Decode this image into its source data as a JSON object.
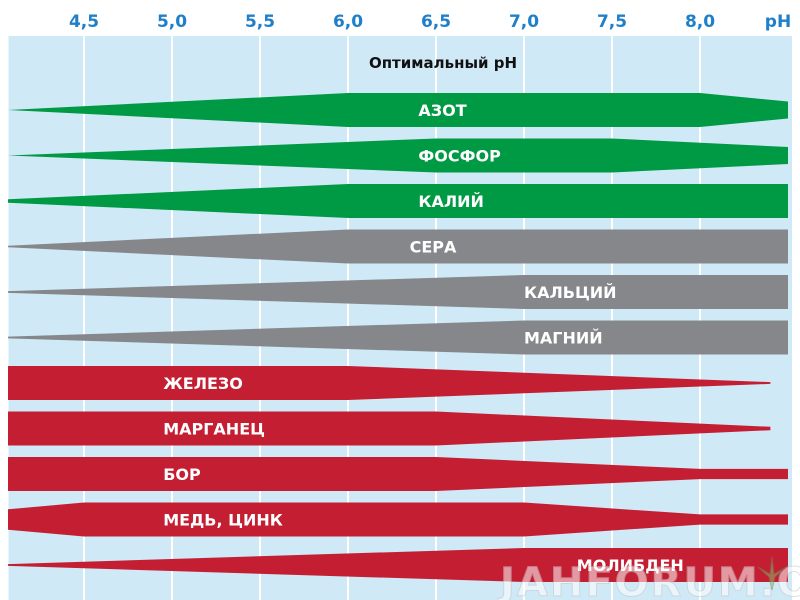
{
  "chart_data": {
    "type": "area",
    "title": "Оптимальный pH",
    "x_unit_label": "pH",
    "x_ticks": [
      4.5,
      5.0,
      5.5,
      6.0,
      6.5,
      7.0,
      7.5,
      8.0
    ],
    "x_tick_labels": [
      "4,5",
      "5,0",
      "5,5",
      "6,0",
      "6,5",
      "7,0",
      "7,5",
      "8,0"
    ],
    "xlim": [
      4.0,
      8.5
    ],
    "grid": true,
    "legend": "none",
    "colors": {
      "background": "#cfe9f7",
      "gridline": "#ffffff",
      "tick_text": "#1f7fc9",
      "green": "#009944",
      "gray": "#85878a",
      "red": "#c41e32"
    },
    "series": [
      {
        "name": "АЗОТ",
        "group": "green",
        "profile": [
          [
            4.0,
            0.0
          ],
          [
            6.0,
            1.0
          ],
          [
            8.0,
            1.0
          ],
          [
            8.5,
            0.5
          ]
        ]
      },
      {
        "name": "ФОСФОР",
        "group": "green",
        "profile": [
          [
            4.0,
            0.0
          ],
          [
            6.5,
            1.0
          ],
          [
            7.5,
            1.0
          ],
          [
            8.5,
            0.5
          ]
        ]
      },
      {
        "name": "КАЛИЙ",
        "group": "green",
        "profile": [
          [
            4.0,
            0.1
          ],
          [
            6.0,
            1.0
          ],
          [
            8.5,
            1.0
          ]
        ]
      },
      {
        "name": "СЕРА",
        "group": "gray",
        "profile": [
          [
            4.0,
            0.05
          ],
          [
            6.0,
            1.0
          ],
          [
            8.5,
            1.0
          ]
        ]
      },
      {
        "name": "КАЛЬЦИЙ",
        "group": "gray",
        "profile": [
          [
            4.0,
            0.05
          ],
          [
            7.0,
            1.0
          ],
          [
            8.5,
            1.0
          ]
        ]
      },
      {
        "name": "МАГНИЙ",
        "group": "gray",
        "profile": [
          [
            4.0,
            0.05
          ],
          [
            7.0,
            1.0
          ],
          [
            8.5,
            1.0
          ]
        ]
      },
      {
        "name": "ЖЕЛЕЗО",
        "group": "red",
        "profile": [
          [
            4.0,
            1.0
          ],
          [
            6.0,
            1.0
          ],
          [
            8.4,
            0.05
          ]
        ]
      },
      {
        "name": "МАРГАНЕЦ",
        "group": "red",
        "profile": [
          [
            4.0,
            1.0
          ],
          [
            6.5,
            1.0
          ],
          [
            8.4,
            0.1
          ]
        ]
      },
      {
        "name": "БОР",
        "group": "red",
        "profile": [
          [
            4.0,
            1.0
          ],
          [
            6.5,
            1.0
          ],
          [
            8.0,
            0.3
          ],
          [
            8.5,
            0.3
          ]
        ]
      },
      {
        "name": "МЕДЬ, ЦИНК",
        "group": "red",
        "profile": [
          [
            4.0,
            0.6
          ],
          [
            4.5,
            1.0
          ],
          [
            7.0,
            1.0
          ],
          [
            8.0,
            0.3
          ],
          [
            8.5,
            0.3
          ]
        ]
      },
      {
        "name": "МОЛИБДЕН",
        "group": "red",
        "profile": [
          [
            4.0,
            0.05
          ],
          [
            7.0,
            1.0
          ],
          [
            8.5,
            1.0
          ]
        ]
      }
    ]
  },
  "watermark": "JAHFORUM.ORG"
}
